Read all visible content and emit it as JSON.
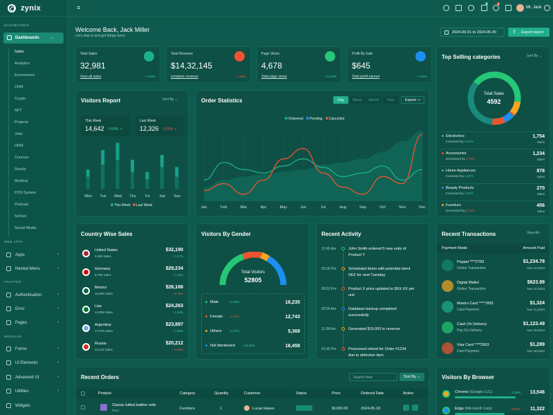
{
  "app": {
    "name": "zynix"
  },
  "sidebar": {
    "section_dashboards": "DASHBOARDS",
    "section_webapps": "WEB APPS",
    "section_crafted": "CRAFTED",
    "section_modules": "MODULES",
    "dashboards": "Dashboards",
    "subs": [
      "Sales",
      "Analytics",
      "Ecommerce",
      "CRM",
      "Crypto",
      "NFT",
      "Projects",
      "Jobs",
      "HRM",
      "Courses",
      "Stocks",
      "Medical",
      "POS System",
      "Podcast",
      "School",
      "Social Media"
    ],
    "apps": "Apps",
    "nested": "Nested Menu",
    "auth": "Authentication",
    "error": "Error",
    "pages": "Pages",
    "forms": "Forms",
    "ui": "UI Elements",
    "advanced": "Advanced UI",
    "utilities": "Utilities",
    "widgets": "Widgets"
  },
  "header": {
    "user": "Mr. Jack",
    "welcome": "Welcome Back, Jack Miller",
    "sub": "Let's dive in and get things done.",
    "date_range": "2024-05-01 to 2024-05-30",
    "export": "Export report",
    "badge_cart": "5",
    "badge_notif": "4"
  },
  "stats": [
    {
      "label": "Total Sales",
      "value": "32,981",
      "link": "View all sales",
      "change": "↑ 0.29%",
      "dir": "up",
      "color": "#1fae8c"
    },
    {
      "label": "Total Revenue",
      "value": "$14,32,145",
      "link": "complete revenue",
      "change": "↑ 3.45%",
      "dir": "down",
      "color": "#f0532f"
    },
    {
      "label": "Page Views",
      "value": "4,678",
      "link": "Total page views",
      "change": "↑ 11.54%",
      "dir": "up",
      "color": "#26c776"
    },
    {
      "label": "Profit By Sale",
      "value": "$645",
      "link": "Total profit earned",
      "change": "↑ 0.18%",
      "dir": "up",
      "color": "#1c8ff0"
    }
  ],
  "top_selling": {
    "title": "Top Selling categories",
    "sort": "Sort By",
    "center_label": "Total Sales",
    "center_value": "4592",
    "items": [
      {
        "name": "Electronics",
        "trend": "Increased by",
        "pct": "0.64%",
        "dir": "up",
        "value": "1,754",
        "unit": "Sales",
        "color": "#26c776"
      },
      {
        "name": "Accessories",
        "trend": "Decreased by",
        "pct": "2.75%",
        "dir": "down",
        "value": "1,234",
        "unit": "Sales",
        "color": "#f0532f"
      },
      {
        "name": "Home Appliances",
        "trend": "Increased by",
        "pct": "1.54%",
        "dir": "up",
        "value": "878",
        "unit": "Sales",
        "color": "#26c776"
      },
      {
        "name": "Beauty Products",
        "trend": "Increased by",
        "pct": "1.54%",
        "dir": "up",
        "value": "270",
        "unit": "Sales",
        "color": "#1c8ff0"
      },
      {
        "name": "Furniture",
        "trend": "Decreased by",
        "pct": "0.12%",
        "dir": "down",
        "value": "456",
        "unit": "Sales",
        "color": "#f6a623"
      }
    ]
  },
  "visitors_report": {
    "title": "Visitors Report",
    "sort": "Sort By",
    "this_week_label": "This Week",
    "this_week_value": "14,642",
    "this_week_chg": "0.64%",
    "last_week_label": "Last Week",
    "last_week_value": "12,326",
    "last_week_chg": "0.15%",
    "legend_this": "This Week",
    "legend_last": "Last Week",
    "chart_data": {
      "type": "bar",
      "categories": [
        "Mon",
        "Tue",
        "Wed",
        "Thu",
        "Fri",
        "Sat",
        "Sun"
      ],
      "series": [
        {
          "name": "This Week",
          "values": [
            40,
            80,
            95,
            60,
            35,
            70,
            45
          ]
        },
        {
          "name": "Last Week",
          "values": [
            25,
            50,
            60,
            35,
            20,
            45,
            25
          ]
        }
      ]
    }
  },
  "order_stats": {
    "title": "Order Statistics",
    "tabs": [
      "Day",
      "Week",
      "Month",
      "Year"
    ],
    "export": "Export",
    "chart_data": {
      "type": "line",
      "categories": [
        "Jan",
        "Feb",
        "Mar",
        "Apr",
        "May",
        "Jun",
        "Jul",
        "Aug",
        "Sep",
        "Oct",
        "Nov",
        "Dec"
      ],
      "series": [
        {
          "name": "Delivered",
          "values": [
            20,
            30,
            35,
            38,
            42,
            45,
            52,
            55,
            60,
            70,
            85,
            100
          ]
        },
        {
          "name": "Pending",
          "values": [
            30,
            55,
            45,
            40,
            50,
            60,
            48,
            35,
            40,
            50,
            30,
            45
          ]
        },
        {
          "name": "Cancelled",
          "values": [
            15,
            25,
            10,
            30,
            60,
            75,
            40,
            20,
            10,
            35,
            25,
            95
          ]
        }
      ]
    }
  },
  "country_sales": {
    "title": "Country Wise Sales",
    "items": [
      {
        "name": "United States",
        "sales": "3,290 Sales",
        "value": "$32,190",
        "chg": "↑ 0.27%",
        "dir": "up"
      },
      {
        "name": "Germany",
        "sales": "8,798 Sales",
        "value": "$29,234",
        "chg": "↑ 0.12%",
        "dir": "up"
      },
      {
        "name": "Mexico",
        "sales": "16,885 Sales",
        "value": "$26,166",
        "chg": "↓ 0.75%",
        "dir": "down"
      },
      {
        "name": "Uae",
        "sales": "14,885 Sales",
        "value": "$24,263",
        "chg": "↑ 1.45%",
        "dir": "up"
      },
      {
        "name": "Argentina",
        "sales": "17,578 Sales",
        "value": "$23,897",
        "chg": "↑ 0.36%",
        "dir": "up"
      },
      {
        "name": "Russia",
        "sales": "10,118 Sales",
        "value": "$20,212",
        "chg": "↓ 0.68%",
        "dir": "down"
      }
    ]
  },
  "gender": {
    "title": "Visitors By Gender",
    "center_label": "Total Visitors",
    "center_value": "52805",
    "items": [
      {
        "name": "Male",
        "chg": "↑ 0.78%",
        "dir": "up",
        "value": "18,235",
        "color": "#26c776"
      },
      {
        "name": "Female",
        "chg": "↓ 1.57%",
        "dir": "down",
        "value": "12,743",
        "color": "#f0532f"
      },
      {
        "name": "Others",
        "chg": "↑ 0.27%",
        "dir": "up",
        "value": "5,369",
        "color": "#f6a623"
      },
      {
        "name": "Not Mentioned",
        "chg": "↑ 19.45%",
        "dir": "up",
        "value": "16,458",
        "color": "#1c8ff0"
      }
    ]
  },
  "activity": {
    "title": "Recent Activity",
    "items": [
      {
        "time": "12:45 Am",
        "text": "John Smith ordered 5 new units of",
        "extra": "Product Y"
      },
      {
        "time": "03:26 Pm",
        "text": "Scheduled demo with potential client",
        "extra": "DEF for next Tuesday"
      },
      {
        "time": "09:52 Pm",
        "text": "Product X price updated to $XX.XX per",
        "extra": "unit"
      },
      {
        "time": "02:54 Am",
        "text": "Database backup completed",
        "extra": "successfully"
      },
      {
        "time": "11:38 Am",
        "text": "Generated $10,000 in revenue",
        "extra": ""
      },
      {
        "time": "01:42 Pm",
        "text": "Processed refund for Order #1234",
        "extra": "due to defective item"
      }
    ]
  },
  "transactions": {
    "title": "Recent Transactions",
    "view_all": "View All",
    "col1": "Payment Mode",
    "col2": "Amount Paid",
    "items": [
      {
        "name": "Paypal ****2783",
        "type": "Online Transaction",
        "amount": "$1,234.78",
        "date": "Nov 22,2024"
      },
      {
        "name": "Digital Wallet",
        "type": "Online Transaction",
        "amount": "$623.99",
        "date": "Nov 22,2024"
      },
      {
        "name": "Mastro Card ****7893",
        "type": "Card Payment",
        "amount": "$1,324",
        "date": "Nov 21,2024"
      },
      {
        "name": "Cash On Delivery",
        "type": "Pay On Delivery",
        "amount": "$1,123.49",
        "date": "Nov 20,2024"
      },
      {
        "name": "Visa Card ****2563",
        "type": "Card Payment",
        "amount": "$1,289",
        "date": "Nov 18,2024"
      }
    ]
  },
  "orders": {
    "title": "Recent Orders",
    "search": "Search Here",
    "sort": "Sort By",
    "cols": [
      "Product",
      "Category",
      "Quantity",
      "Customer",
      "Status",
      "Price",
      "Ordered Date",
      "Action"
    ],
    "row": {
      "product": "Classic tufted leather sofa",
      "sub": "Pixel",
      "category": "Furniture",
      "qty": "1",
      "customer": "Lucas Hayes",
      "price": "$1200.00",
      "date": "2024-05-18"
    }
  },
  "browser": {
    "title": "Visitors By Browser",
    "items": [
      {
        "name": "Chrome",
        "sub": "(Google LLC)",
        "chg": "↑ 3.26%",
        "value": "13,546",
        "pct": 0.8
      },
      {
        "name": "Edge",
        "sub": "(Microsoft Corp)",
        "chg": "↓ 0.96%",
        "value": "11,322",
        "pct": 0.65
      }
    ]
  }
}
